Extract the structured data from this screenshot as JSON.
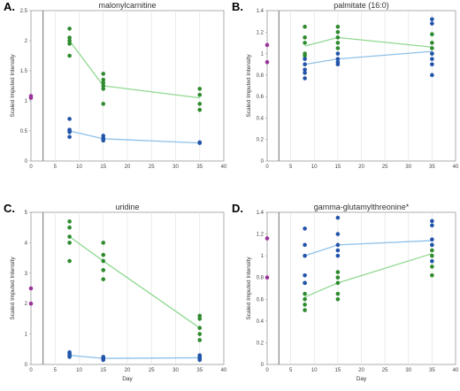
{
  "chart_data": [
    {
      "type": "scatter",
      "panel": "A.",
      "title": "malonylcarnitine",
      "xlabel": "",
      "ylabel": "Scaled Imputed Intensity",
      "xlim": [
        0,
        40
      ],
      "ylim": [
        0,
        2.5
      ],
      "x_ticks": [
        "0",
        "5",
        "10",
        "15",
        "20",
        "25",
        "30",
        "35",
        "40"
      ],
      "y_ticks": [
        "0",
        "0.5",
        "1",
        "1.5",
        "2",
        "2.5"
      ],
      "grid": true,
      "legend": "none",
      "baseline": {
        "color": "#993399",
        "points": [
          [
            0,
            1.05
          ],
          [
            0,
            1.08
          ]
        ]
      },
      "series": [
        {
          "color": "#2e8b2e",
          "points": [
            [
              8,
              2.2
            ],
            [
              8,
              2.05
            ],
            [
              8,
              2.0
            ],
            [
              8,
              1.95
            ],
            [
              8,
              1.75
            ],
            [
              15,
              1.45
            ],
            [
              15,
              1.35
            ],
            [
              15,
              1.3
            ],
            [
              15,
              1.25
            ],
            [
              15,
              1.2
            ],
            [
              15,
              0.95
            ],
            [
              35,
              1.2
            ],
            [
              35,
              1.1
            ],
            [
              35,
              0.95
            ],
            [
              35,
              0.85
            ]
          ],
          "mean": [
            [
              8,
              2.0
            ],
            [
              15,
              1.25
            ],
            [
              35,
              1.05
            ]
          ]
        },
        {
          "color": "#2255aa",
          "points": [
            [
              8,
              0.7
            ],
            [
              8,
              0.52
            ],
            [
              8,
              0.5
            ],
            [
              8,
              0.48
            ],
            [
              8,
              0.4
            ],
            [
              15,
              0.42
            ],
            [
              15,
              0.38
            ],
            [
              15,
              0.36
            ],
            [
              15,
              0.34
            ],
            [
              35,
              0.31
            ],
            [
              35,
              0.3
            ]
          ],
          "mean": [
            [
              8,
              0.5
            ],
            [
              15,
              0.37
            ],
            [
              35,
              0.3
            ]
          ]
        }
      ]
    },
    {
      "type": "scatter",
      "panel": "B.",
      "title": "palmitate (16:0)",
      "xlabel": "",
      "ylabel": "Scaled Imputed Intensity",
      "xlim": [
        0,
        40
      ],
      "ylim": [
        0,
        1.4
      ],
      "x_ticks": [
        "0",
        "5",
        "10",
        "15",
        "20",
        "25",
        "30",
        "35",
        "40"
      ],
      "y_ticks": [
        "0",
        "0.2",
        "0.4",
        "0.6",
        "0.8",
        "1",
        "1.2",
        "1.4"
      ],
      "grid": true,
      "legend": "none",
      "baseline": {
        "color": "#993399",
        "points": [
          [
            0,
            1.08
          ],
          [
            0,
            0.92
          ]
        ]
      },
      "series": [
        {
          "color": "#2e8b2e",
          "points": [
            [
              8,
              1.25
            ],
            [
              8,
              1.15
            ],
            [
              8,
              1.1
            ],
            [
              8,
              1.0
            ],
            [
              8,
              0.98
            ],
            [
              15,
              1.25
            ],
            [
              15,
              1.2
            ],
            [
              15,
              1.15
            ],
            [
              15,
              1.1
            ],
            [
              15,
              1.05
            ],
            [
              35,
              1.18
            ],
            [
              35,
              1.1
            ],
            [
              35,
              1.05
            ],
            [
              35,
              1.0
            ]
          ],
          "mean": [
            [
              8,
              1.07
            ],
            [
              15,
              1.15
            ],
            [
              35,
              1.06
            ]
          ]
        },
        {
          "color": "#2255aa",
          "points": [
            [
              8,
              0.95
            ],
            [
              8,
              0.9
            ],
            [
              8,
              0.85
            ],
            [
              8,
              0.82
            ],
            [
              8,
              0.77
            ],
            [
              15,
              1.0
            ],
            [
              15,
              0.95
            ],
            [
              15,
              0.92
            ],
            [
              15,
              0.9
            ],
            [
              35,
              1.32
            ],
            [
              35,
              1.28
            ],
            [
              35,
              1.0
            ],
            [
              35,
              0.95
            ],
            [
              35,
              0.9
            ],
            [
              35,
              0.8
            ]
          ],
          "mean": [
            [
              8,
              0.9
            ],
            [
              15,
              0.95
            ],
            [
              35,
              1.02
            ]
          ]
        }
      ]
    },
    {
      "type": "scatter",
      "panel": "C.",
      "title": "uridine",
      "xlabel": "Day",
      "ylabel": "Scaled Imputed Intensity",
      "xlim": [
        0,
        40
      ],
      "ylim": [
        0,
        5
      ],
      "x_ticks": [
        "0",
        "5",
        "10",
        "15",
        "20",
        "25",
        "30",
        "35",
        "40"
      ],
      "y_ticks": [
        "0",
        "1",
        "2",
        "3",
        "4",
        "5"
      ],
      "grid": true,
      "legend": "none",
      "baseline": {
        "color": "#993399",
        "points": [
          [
            0,
            2.5
          ],
          [
            0,
            2.0
          ]
        ]
      },
      "series": [
        {
          "color": "#2e8b2e",
          "points": [
            [
              8,
              4.7
            ],
            [
              8,
              4.5
            ],
            [
              8,
              4.2
            ],
            [
              8,
              4.0
            ],
            [
              8,
              3.4
            ],
            [
              15,
              4.0
            ],
            [
              15,
              3.6
            ],
            [
              15,
              3.4
            ],
            [
              15,
              3.1
            ],
            [
              15,
              2.8
            ],
            [
              35,
              1.6
            ],
            [
              35,
              1.5
            ],
            [
              35,
              1.2
            ],
            [
              35,
              1.0
            ],
            [
              35,
              0.8
            ]
          ],
          "mean": [
            [
              8,
              4.2
            ],
            [
              15,
              3.4
            ],
            [
              35,
              1.2
            ]
          ]
        },
        {
          "color": "#2255aa",
          "points": [
            [
              8,
              0.4
            ],
            [
              8,
              0.35
            ],
            [
              8,
              0.3
            ],
            [
              8,
              0.25
            ],
            [
              15,
              0.25
            ],
            [
              15,
              0.2
            ],
            [
              15,
              0.18
            ],
            [
              15,
              0.15
            ],
            [
              35,
              0.3
            ],
            [
              35,
              0.25
            ],
            [
              35,
              0.2
            ],
            [
              35,
              0.15
            ]
          ],
          "mean": [
            [
              8,
              0.3
            ],
            [
              15,
              0.2
            ],
            [
              35,
              0.22
            ]
          ]
        }
      ]
    },
    {
      "type": "scatter",
      "panel": "D.",
      "title": "gamma-glutamylthreonine*",
      "xlabel": "Day",
      "ylabel": "Scaled Imputed Intensity",
      "xlim": [
        0,
        40
      ],
      "ylim": [
        0,
        1.4
      ],
      "x_ticks": [
        "0",
        "5",
        "10",
        "15",
        "20",
        "25",
        "30",
        "35",
        "40"
      ],
      "y_ticks": [
        "0",
        "0.2",
        "0.4",
        "0.6",
        "0.8",
        "1",
        "1.2",
        "1.4"
      ],
      "grid": true,
      "legend": "none",
      "baseline": {
        "color": "#993399",
        "points": [
          [
            0,
            1.16
          ],
          [
            0,
            0.8
          ]
        ]
      },
      "series": [
        {
          "color": "#2e8b2e",
          "points": [
            [
              8,
              0.75
            ],
            [
              8,
              0.65
            ],
            [
              8,
              0.6
            ],
            [
              8,
              0.55
            ],
            [
              8,
              0.5
            ],
            [
              15,
              0.85
            ],
            [
              15,
              0.8
            ],
            [
              15,
              0.75
            ],
            [
              15,
              0.65
            ],
            [
              15,
              0.6
            ],
            [
              35,
              1.1
            ],
            [
              35,
              1.05
            ],
            [
              35,
              1.0
            ],
            [
              35,
              0.9
            ],
            [
              35,
              0.82
            ]
          ],
          "mean": [
            [
              8,
              0.62
            ],
            [
              15,
              0.75
            ],
            [
              35,
              1.02
            ]
          ]
        },
        {
          "color": "#2255aa",
          "points": [
            [
              8,
              1.25
            ],
            [
              8,
              1.1
            ],
            [
              8,
              1.0
            ],
            [
              8,
              0.82
            ],
            [
              8,
              0.75
            ],
            [
              15,
              1.35
            ],
            [
              15,
              1.2
            ],
            [
              15,
              1.1
            ],
            [
              15,
              1.05
            ],
            [
              15,
              1.0
            ],
            [
              35,
              1.32
            ],
            [
              35,
              1.28
            ],
            [
              35,
              1.15
            ],
            [
              35,
              1.1
            ],
            [
              35,
              0.95
            ]
          ],
          "mean": [
            [
              8,
              1.0
            ],
            [
              15,
              1.1
            ],
            [
              35,
              1.14
            ]
          ]
        }
      ]
    }
  ]
}
